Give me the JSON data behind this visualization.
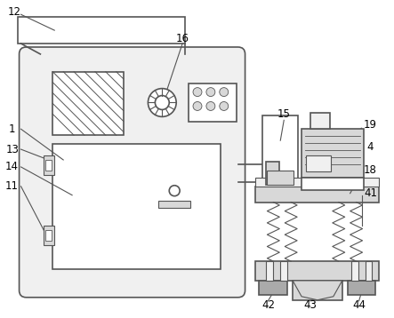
{
  "background_color": "#ffffff",
  "line_color": "#555555",
  "fill_light": "#f0f0f0",
  "fill_mid": "#d8d8d8",
  "fill_dark": "#aaaaaa",
  "fig_w": 4.43,
  "fig_h": 3.58,
  "dpi": 100
}
